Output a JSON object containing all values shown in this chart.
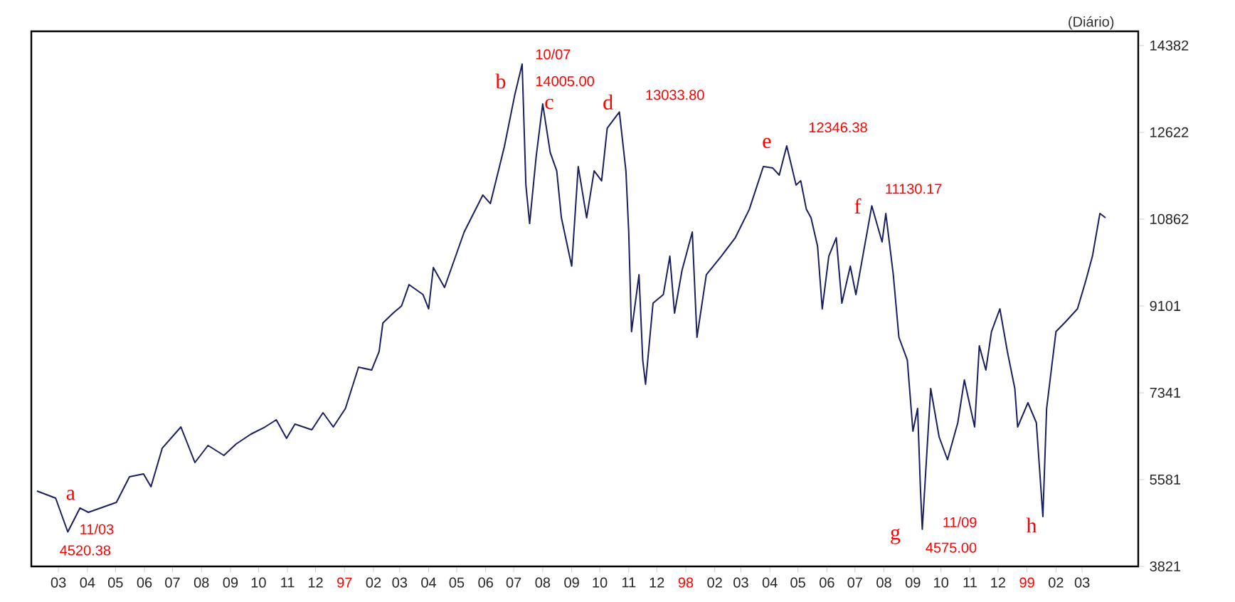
{
  "chart_data": {
    "type": "line",
    "title": "(Diário)",
    "color": "#1a1f5e",
    "x": [
      "1996-02-07",
      "1996-02-27",
      "1996-03-11",
      "1996-03-24",
      "1996-04-02",
      "1996-05-02",
      "1996-05-16",
      "1996-05-31",
      "1996-06-08",
      "1996-06-20",
      "1996-07-10",
      "1996-07-25",
      "1996-08-08",
      "1996-08-25",
      "1996-09-07",
      "1996-09-23",
      "1996-10-08",
      "1996-10-20",
      "1996-10-31",
      "1996-11-09",
      "1996-11-27",
      "1996-12-09",
      "1996-12-20",
      "1997-01-02",
      "1997-01-16",
      "1997-01-30",
      "1997-02-07",
      "1997-02-11",
      "1997-02-22",
      "1997-03-03",
      "1997-03-11",
      "1997-03-26",
      "1997-04-01",
      "1997-04-06",
      "1997-04-18",
      "1997-05-09",
      "1997-05-29",
      "1997-06-06",
      "1997-06-21",
      "1997-07-02",
      "1997-07-10",
      "1997-07-14",
      "1997-07-18",
      "1997-07-25",
      "1997-08-01",
      "1997-08-09",
      "1997-08-16",
      "1997-08-21",
      "1997-09-01",
      "1997-09-08",
      "1997-09-17",
      "1997-09-25",
      "1997-10-03",
      "1997-10-09",
      "1997-10-22",
      "1997-10-29",
      "1997-11-01",
      "1997-11-04",
      "1997-11-12",
      "1997-11-16",
      "1997-11-19",
      "1997-11-27",
      "1997-12-08",
      "1997-12-15",
      "1997-12-20",
      "1997-12-28",
      "1998-01-08",
      "1998-01-13",
      "1998-01-23",
      "1998-02-08",
      "1998-02-23",
      "1998-03-10",
      "1998-03-25",
      "1998-04-04",
      "1998-04-11",
      "1998-04-19",
      "1998-04-29",
      "1998-05-04",
      "1998-05-10",
      "1998-05-15",
      "1998-05-22",
      "1998-05-27",
      "1998-06-03",
      "1998-06-11",
      "1998-06-17",
      "1998-06-26",
      "1998-07-02",
      "1998-07-19",
      "1998-07-30",
      "1998-08-03",
      "1998-08-11",
      "1998-08-17",
      "1998-08-26",
      "1998-09-01",
      "1998-09-06",
      "1998-09-09",
      "1998-09-11",
      "1998-09-20",
      "1998-09-29",
      "1998-10-08",
      "1998-10-19",
      "1998-10-26",
      "1998-11-06",
      "1998-11-11",
      "1998-11-18",
      "1998-11-24",
      "1998-12-03",
      "1998-12-11",
      "1998-12-19",
      "1998-12-22",
      "1999-01-02",
      "1999-01-11",
      "1999-01-18",
      "1999-01-22",
      "1999-02-01",
      "1999-02-10",
      "1999-02-24",
      "1999-03-05",
      "1999-03-12",
      "1999-03-20",
      "1999-03-26"
    ],
    "values": [
      5350,
      5206,
      4520.38,
      5004,
      4917,
      5119,
      5639,
      5696,
      5437,
      6216,
      6648,
      5927,
      6273,
      6071,
      6302,
      6504,
      6648,
      6793,
      6418,
      6706,
      6591,
      6937,
      6648,
      7023,
      7860,
      7802,
      8177,
      8754,
      8956,
      9101,
      9533,
      9331,
      9043,
      9880,
      9476,
      10601,
      11351,
      11178,
      12332,
      13370,
      14005,
      11553,
      10774,
      12130,
      13197,
      12216,
      11841,
      10889,
      9908,
      11928,
      10889,
      11841,
      11639,
      12707,
      13033.8,
      11841,
      10601,
      8581,
      9735,
      8004,
      7514,
      9158,
      9331,
      10110,
      8956,
      9822,
      10601,
      8466,
      9735,
      10110,
      10485,
      11062,
      11928,
      11899,
      11755,
      12346.38,
      11553,
      11639,
      11062,
      10889,
      10312,
      9043,
      10110,
      10485,
      9158,
      9908,
      9331,
      11130.17,
      10399,
      10976,
      9735,
      8466,
      8004,
      6562,
      7023,
      5408,
      4575,
      7427,
      6446,
      5985,
      6735,
      7600,
      6648,
      8293,
      7802,
      8581,
      9043,
      8177,
      7427,
      6648,
      7139,
      6735,
      4831,
      7023,
      8581,
      8754,
      9043,
      9620,
      10110,
      10976,
      10889
    ],
    "xlim": [
      "1996-02-01",
      "1999-04-30"
    ],
    "xticks": [
      {
        "value": "1996-03-01",
        "label": "03"
      },
      {
        "value": "1996-04-01",
        "label": "04"
      },
      {
        "value": "1996-05-01",
        "label": "05"
      },
      {
        "value": "1996-06-01",
        "label": "06"
      },
      {
        "value": "1996-07-01",
        "label": "07"
      },
      {
        "value": "1996-08-01",
        "label": "08"
      },
      {
        "value": "1996-09-01",
        "label": "09"
      },
      {
        "value": "1996-10-01",
        "label": "10"
      },
      {
        "value": "1996-11-01",
        "label": "11"
      },
      {
        "value": "1996-12-01",
        "label": "12"
      },
      {
        "value": "1997-01-01",
        "label": "97"
      },
      {
        "value": "1997-02-01",
        "label": "02"
      },
      {
        "value": "1997-03-01",
        "label": "03"
      },
      {
        "value": "1997-04-01",
        "label": "04"
      },
      {
        "value": "1997-05-01",
        "label": "05"
      },
      {
        "value": "1997-06-01",
        "label": "06"
      },
      {
        "value": "1997-07-01",
        "label": "07"
      },
      {
        "value": "1997-08-01",
        "label": "08"
      },
      {
        "value": "1997-09-01",
        "label": "09"
      },
      {
        "value": "1997-10-01",
        "label": "10"
      },
      {
        "value": "1997-11-01",
        "label": "11"
      },
      {
        "value": "1997-12-01",
        "label": "12"
      },
      {
        "value": "1998-01-01",
        "label": "98"
      },
      {
        "value": "1998-02-01",
        "label": "02"
      },
      {
        "value": "1998-03-01",
        "label": "03"
      },
      {
        "value": "1998-04-01",
        "label": "04"
      },
      {
        "value": "1998-05-01",
        "label": "05"
      },
      {
        "value": "1998-06-01",
        "label": "06"
      },
      {
        "value": "1998-07-01",
        "label": "07"
      },
      {
        "value": "1998-08-01",
        "label": "08"
      },
      {
        "value": "1998-09-01",
        "label": "09"
      },
      {
        "value": "1998-10-01",
        "label": "10"
      },
      {
        "value": "1998-11-01",
        "label": "11"
      },
      {
        "value": "1998-12-01",
        "label": "12"
      },
      {
        "value": "1999-01-01",
        "label": "99"
      },
      {
        "value": "1999-02-01",
        "label": "02"
      },
      {
        "value": "1999-03-01",
        "label": "03"
      }
    ],
    "ylim": [
      3821,
      14670
    ],
    "yticks": [
      3821,
      5581,
      7341,
      9101,
      10862,
      12622,
      14382
    ],
    "annotations": [
      {
        "text": "a",
        "x": "1996-03-11",
        "y": 4520.38
      },
      {
        "text": "11/03",
        "x": "1996-03-11",
        "y": 4520.38
      },
      {
        "text": "4520.38",
        "x": "1996-03-11",
        "y": 4520.38
      },
      {
        "text": "b",
        "x": "1997-07-10",
        "y": 14005
      },
      {
        "text": "10/07",
        "x": "1997-07-10",
        "y": 14005
      },
      {
        "text": "14005.00",
        "x": "1997-07-10",
        "y": 14005
      },
      {
        "text": "c",
        "x": "1997-08-01",
        "y": 13197
      },
      {
        "text": "d",
        "x": "1997-10-22",
        "y": 13033.8
      },
      {
        "text": "13033.80",
        "x": "1997-10-22",
        "y": 13033.8
      },
      {
        "text": "e",
        "x": "1998-04-19",
        "y": 12346.38
      },
      {
        "text": "12346.38",
        "x": "1998-04-19",
        "y": 12346.38
      },
      {
        "text": "f",
        "x": "1998-07-19",
        "y": 11130.17
      },
      {
        "text": "11130.17",
        "x": "1998-07-19",
        "y": 11130.17
      },
      {
        "text": "g",
        "x": "1998-09-11",
        "y": 4575
      },
      {
        "text": "11/09",
        "x": "1998-09-11",
        "y": 4575
      },
      {
        "text": "4575.00",
        "x": "1998-09-11",
        "y": 4575
      },
      {
        "text": "h",
        "x": "1999-01-18",
        "y": 4831
      }
    ]
  }
}
